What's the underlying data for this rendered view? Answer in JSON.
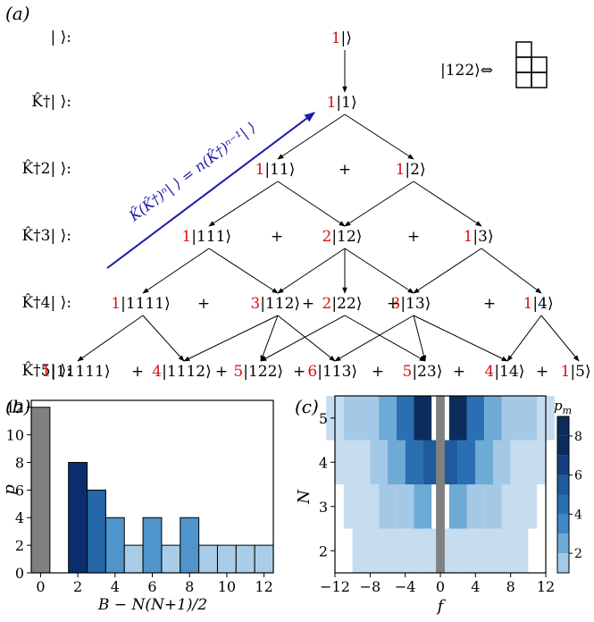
{
  "panel_a": {
    "label": "(a)",
    "row_labels": [
      "| ⟩:",
      "K̂†| ⟩:",
      "K̂†2| ⟩:",
      "K̂†3| ⟩:",
      "K̂†4| ⟩:",
      "K̂†5| ⟩:"
    ],
    "rows": [
      [
        {
          "coef": "1",
          "ket": "|⟩"
        }
      ],
      [
        {
          "coef": "1",
          "ket": "|1⟩"
        }
      ],
      [
        {
          "coef": "1",
          "ket": "|11⟩"
        },
        {
          "coef": "1",
          "ket": "|2⟩"
        }
      ],
      [
        {
          "coef": "1",
          "ket": "|111⟩"
        },
        {
          "coef": "2",
          "ket": "|12⟩"
        },
        {
          "coef": "1",
          "ket": "|3⟩"
        }
      ],
      [
        {
          "coef": "1",
          "ket": "|1111⟩"
        },
        {
          "coef": "3",
          "ket": "|112⟩"
        },
        {
          "coef": "2",
          "ket": "|22⟩"
        },
        {
          "coef": "3",
          "ket": "|13⟩"
        },
        {
          "coef": "1",
          "ket": "|4⟩"
        }
      ],
      [
        {
          "coef": "1",
          "ket": "|11111⟩"
        },
        {
          "coef": "4",
          "ket": "|1112⟩"
        },
        {
          "coef": "5",
          "ket": "|122⟩"
        },
        {
          "coef": "6",
          "ket": "|113⟩"
        },
        {
          "coef": "5",
          "ket": "|23⟩"
        },
        {
          "coef": "4",
          "ket": "|14⟩"
        },
        {
          "coef": "1",
          "ket": "|5⟩"
        }
      ]
    ],
    "plus": "+",
    "diagonal_annotation": "K̂(K̂†)ⁿ| ⟩ = n(K̂†)ⁿ⁻¹| ⟩",
    "young_example": "|122⟩⇔",
    "colors": {
      "coef": "#e01010",
      "annotation": "#1a1aa8",
      "text": "#000000"
    }
  },
  "panel_b": {
    "label": "(b)",
    "chart_data": {
      "type": "bar",
      "x": [
        0,
        2,
        3,
        4,
        5,
        6,
        7,
        8,
        9,
        10,
        11,
        12
      ],
      "values": [
        12,
        8,
        6,
        4,
        2,
        4,
        2,
        4,
        2,
        2,
        2,
        2
      ],
      "bar_colors": [
        "#808080",
        "#0b2d6b",
        "#2466a8",
        "#4f95cc",
        "#a9cde8",
        "#4f95cc",
        "#a9cde8",
        "#4f95cc",
        "#a9cde8",
        "#a9cde8",
        "#a9cde8",
        "#a9cde8"
      ],
      "xlabel": "B − N(N+1)/2",
      "ylabel": "p",
      "xlim": [
        -0.5,
        12.5
      ],
      "ylim": [
        0,
        12.5
      ],
      "xticks": [
        "0",
        "2",
        "4",
        "6",
        "8",
        "10",
        "12"
      ],
      "yticks": [
        "0",
        "2",
        "4",
        "6",
        "8",
        "10",
        "12"
      ]
    }
  },
  "panel_c": {
    "label": "(c)",
    "chart_data": {
      "type": "heatmap",
      "xlabel": "f",
      "ylabel": "N",
      "xlim": [
        -12,
        12
      ],
      "ylim": [
        1.5,
        5.5
      ],
      "xticks": [
        "−12",
        "−8",
        "−4",
        "0",
        "4",
        "8",
        "12"
      ],
      "yticks": [
        "2",
        "3",
        "4",
        "5"
      ],
      "rows": [
        {
          "N": 2,
          "f": [
            -9,
            -7,
            -5,
            -3,
            -1,
            1,
            3,
            5,
            7,
            9
          ],
          "p": [
            1,
            1,
            1,
            1,
            1,
            1,
            1,
            1,
            1,
            1
          ]
        },
        {
          "N": 3,
          "f": [
            -10,
            -8,
            -6,
            -4,
            -2,
            2,
            4,
            6,
            8,
            10
          ],
          "p": [
            1,
            1,
            2,
            2,
            3,
            3,
            2,
            2,
            1,
            1
          ]
        },
        {
          "N": 4,
          "f": [
            -11,
            -9,
            -7,
            -5,
            -3,
            -1,
            1,
            3,
            5,
            7,
            9,
            11
          ],
          "p": [
            1,
            1,
            2,
            3,
            5,
            6,
            6,
            5,
            3,
            2,
            1,
            1
          ]
        },
        {
          "N": 5,
          "f": [
            -12,
            -10,
            -8,
            -6,
            -4,
            -2,
            2,
            4,
            6,
            8,
            10,
            12
          ],
          "p": [
            1,
            2,
            2,
            3,
            5,
            8,
            8,
            5,
            3,
            2,
            2,
            1
          ]
        }
      ],
      "zero_column_color": "#808080",
      "colorbar": {
        "label": "p_m",
        "ticks": [
          "2",
          "4",
          "6",
          "8"
        ],
        "range": [
          1,
          9
        ]
      }
    }
  }
}
